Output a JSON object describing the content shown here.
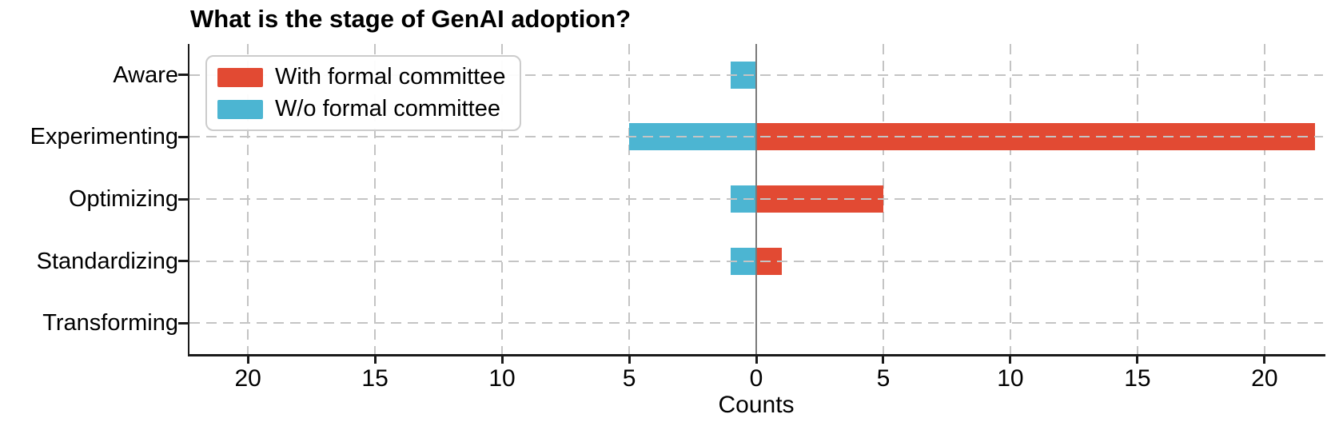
{
  "chart_data": {
    "type": "bar",
    "variant": "horizontal-diverging",
    "title": "What is the stage of GenAI adoption?",
    "xlabel": "Counts",
    "categories": [
      "Aware",
      "Experimenting",
      "Optimizing",
      "Standardizing",
      "Transforming"
    ],
    "series": [
      {
        "name": "With formal committee",
        "color": "#E24A33",
        "direction": "right",
        "values": [
          0,
          22,
          5,
          1,
          0
        ]
      },
      {
        "name": "W/o formal committee",
        "color": "#4CB5D2",
        "direction": "left",
        "values": [
          1,
          5,
          1,
          1,
          0
        ]
      }
    ],
    "x_ticks": [
      -20,
      -15,
      -10,
      -5,
      0,
      5,
      10,
      15,
      20
    ],
    "x_tick_labels": [
      "20",
      "15",
      "10",
      "5",
      "0",
      "5",
      "10",
      "15",
      "20"
    ],
    "xlim": [
      -22.3,
      22.3
    ],
    "grid": true,
    "legend_position": "upper left",
    "colors": {
      "grid": "#c4c4c4",
      "zero_line": "#7a7a7a",
      "spine": "#1a1a1a",
      "text": "#000000",
      "legend_border": "#cccccc"
    }
  }
}
